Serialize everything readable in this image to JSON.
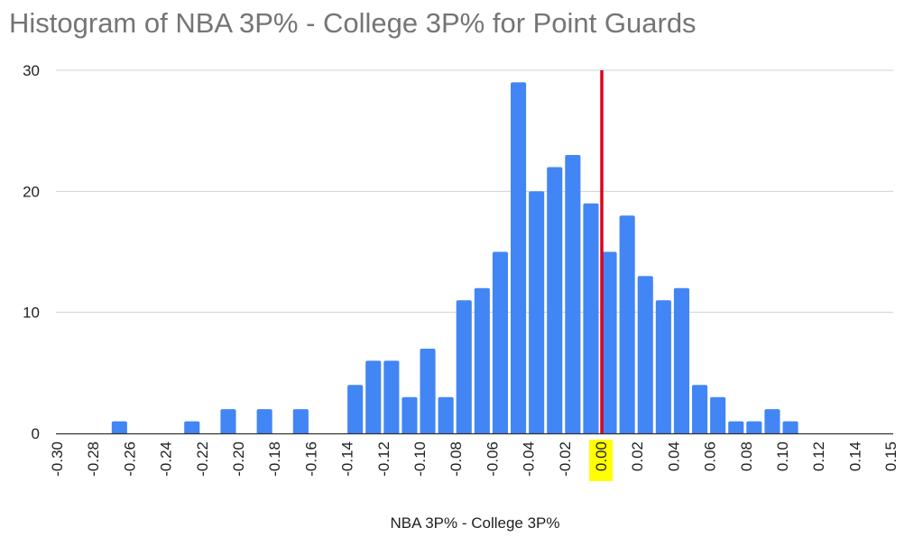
{
  "chart_data": {
    "type": "bar",
    "title": "Histogram of NBA 3P% - College 3P% for Point Guards",
    "xlabel": "NBA 3P% - College 3P%",
    "ylabel": "",
    "bin_width": 0.01,
    "xlim": [
      -0.3,
      0.15
    ],
    "ylim": [
      0,
      30
    ],
    "yticks": [
      0,
      10,
      20,
      30
    ],
    "xtick_labels": [
      "-0.30",
      "-0.28",
      "-0.26",
      "-0.24",
      "-0.22",
      "-0.20",
      "-0.18",
      "-0.16",
      "-0.14",
      "-0.12",
      "-0.10",
      "-0.08",
      "-0.06",
      "-0.04",
      "-0.02",
      "0.00",
      "0.02",
      "0.04",
      "0.06",
      "0.08",
      "0.10",
      "0.12",
      "0.14",
      "0.15"
    ],
    "highlighted_tick": "0.00",
    "bins": [
      {
        "start": -0.27,
        "count": 1
      },
      {
        "start": -0.23,
        "count": 1
      },
      {
        "start": -0.21,
        "count": 2
      },
      {
        "start": -0.19,
        "count": 2
      },
      {
        "start": -0.17,
        "count": 2
      },
      {
        "start": -0.14,
        "count": 4
      },
      {
        "start": -0.13,
        "count": 6
      },
      {
        "start": -0.12,
        "count": 6
      },
      {
        "start": -0.11,
        "count": 3
      },
      {
        "start": -0.1,
        "count": 7
      },
      {
        "start": -0.09,
        "count": 3
      },
      {
        "start": -0.08,
        "count": 11
      },
      {
        "start": -0.07,
        "count": 12
      },
      {
        "start": -0.06,
        "count": 15
      },
      {
        "start": -0.05,
        "count": 29
      },
      {
        "start": -0.04,
        "count": 20
      },
      {
        "start": -0.03,
        "count": 22
      },
      {
        "start": -0.02,
        "count": 23
      },
      {
        "start": -0.01,
        "count": 19
      },
      {
        "start": 0.0,
        "count": 15
      },
      {
        "start": 0.01,
        "count": 18
      },
      {
        "start": 0.02,
        "count": 13
      },
      {
        "start": 0.03,
        "count": 11
      },
      {
        "start": 0.04,
        "count": 12
      },
      {
        "start": 0.05,
        "count": 4
      },
      {
        "start": 0.06,
        "count": 3
      },
      {
        "start": 0.07,
        "count": 1
      },
      {
        "start": 0.08,
        "count": 1
      },
      {
        "start": 0.09,
        "count": 2
      },
      {
        "start": 0.1,
        "count": 1
      }
    ],
    "reference_line": {
      "x": 0.0,
      "color": "#e0001b"
    },
    "bar_color": "#4285f4",
    "highlight_color": "#ffff00",
    "grid": true,
    "legend": "none"
  }
}
